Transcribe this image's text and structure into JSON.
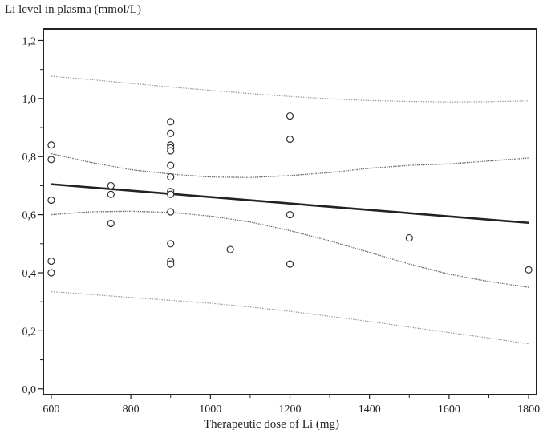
{
  "chart_data": {
    "type": "scatter",
    "ylabel": "Li level in plasma (mmol/L)",
    "xlabel": "Therapeutic dose of Li (mg)",
    "xlim": [
      580,
      1820
    ],
    "ylim": [
      -0.02,
      1.24
    ],
    "xticks": [
      600,
      800,
      1000,
      1200,
      1400,
      1600,
      1800
    ],
    "xtick_labels": [
      "600",
      "800",
      "1000",
      "1200",
      "1400",
      "1600",
      "1800"
    ],
    "xminor": [
      700,
      900,
      1100,
      1300,
      1500,
      1700
    ],
    "yticks": [
      0.0,
      0.2,
      0.4,
      0.6,
      0.8,
      1.0,
      1.2
    ],
    "ytick_labels": [
      "0,0",
      "0,2",
      "0,4",
      "0,6",
      "0,8",
      "1,0",
      "1,2"
    ],
    "yminor": [
      0.1,
      0.3,
      0.5,
      0.7,
      0.9,
      1.1
    ],
    "grid": false,
    "points": [
      [
        600,
        0.84
      ],
      [
        600,
        0.79
      ],
      [
        600,
        0.65
      ],
      [
        600,
        0.44
      ],
      [
        600,
        0.4
      ],
      [
        750,
        0.7
      ],
      [
        750,
        0.67
      ],
      [
        750,
        0.57
      ],
      [
        900,
        0.92
      ],
      [
        900,
        0.88
      ],
      [
        900,
        0.84
      ],
      [
        900,
        0.83
      ],
      [
        900,
        0.82
      ],
      [
        900,
        0.77
      ],
      [
        900,
        0.73
      ],
      [
        900,
        0.68
      ],
      [
        900,
        0.67
      ],
      [
        900,
        0.61
      ],
      [
        900,
        0.5
      ],
      [
        900,
        0.44
      ],
      [
        900,
        0.43
      ],
      [
        1050,
        0.48
      ],
      [
        1200,
        0.94
      ],
      [
        1200,
        0.86
      ],
      [
        1200,
        0.6
      ],
      [
        1200,
        0.43
      ],
      [
        1500,
        0.52
      ],
      [
        1800,
        0.41
      ]
    ],
    "regression": {
      "x": [
        600,
        1800
      ],
      "y": [
        0.705,
        0.572
      ]
    },
    "confidence_band": {
      "upper": [
        [
          600,
          0.81
        ],
        [
          700,
          0.78
        ],
        [
          800,
          0.755
        ],
        [
          900,
          0.74
        ],
        [
          1000,
          0.73
        ],
        [
          1100,
          0.728
        ],
        [
          1200,
          0.735
        ],
        [
          1300,
          0.745
        ],
        [
          1400,
          0.76
        ],
        [
          1500,
          0.77
        ],
        [
          1600,
          0.775
        ],
        [
          1700,
          0.785
        ],
        [
          1800,
          0.795
        ]
      ],
      "lower": [
        [
          600,
          0.6
        ],
        [
          700,
          0.61
        ],
        [
          800,
          0.612
        ],
        [
          900,
          0.608
        ],
        [
          1000,
          0.595
        ],
        [
          1100,
          0.575
        ],
        [
          1200,
          0.545
        ],
        [
          1300,
          0.51
        ],
        [
          1400,
          0.47
        ],
        [
          1500,
          0.43
        ],
        [
          1600,
          0.395
        ],
        [
          1700,
          0.37
        ],
        [
          1800,
          0.35
        ]
      ]
    },
    "prediction_band": {
      "upper": [
        [
          600,
          1.077
        ],
        [
          700,
          1.065
        ],
        [
          800,
          1.052
        ],
        [
          900,
          1.04
        ],
        [
          1000,
          1.028
        ],
        [
          1100,
          1.017
        ],
        [
          1200,
          1.007
        ],
        [
          1300,
          0.999
        ],
        [
          1400,
          0.993
        ],
        [
          1500,
          0.99
        ],
        [
          1600,
          0.988
        ],
        [
          1700,
          0.989
        ],
        [
          1800,
          0.992
        ]
      ],
      "lower": [
        [
          600,
          0.335
        ],
        [
          700,
          0.325
        ],
        [
          800,
          0.315
        ],
        [
          900,
          0.305
        ],
        [
          1000,
          0.295
        ],
        [
          1100,
          0.282
        ],
        [
          1200,
          0.267
        ],
        [
          1300,
          0.25
        ],
        [
          1400,
          0.232
        ],
        [
          1500,
          0.213
        ],
        [
          1600,
          0.194
        ],
        [
          1700,
          0.175
        ],
        [
          1800,
          0.155
        ]
      ]
    }
  }
}
